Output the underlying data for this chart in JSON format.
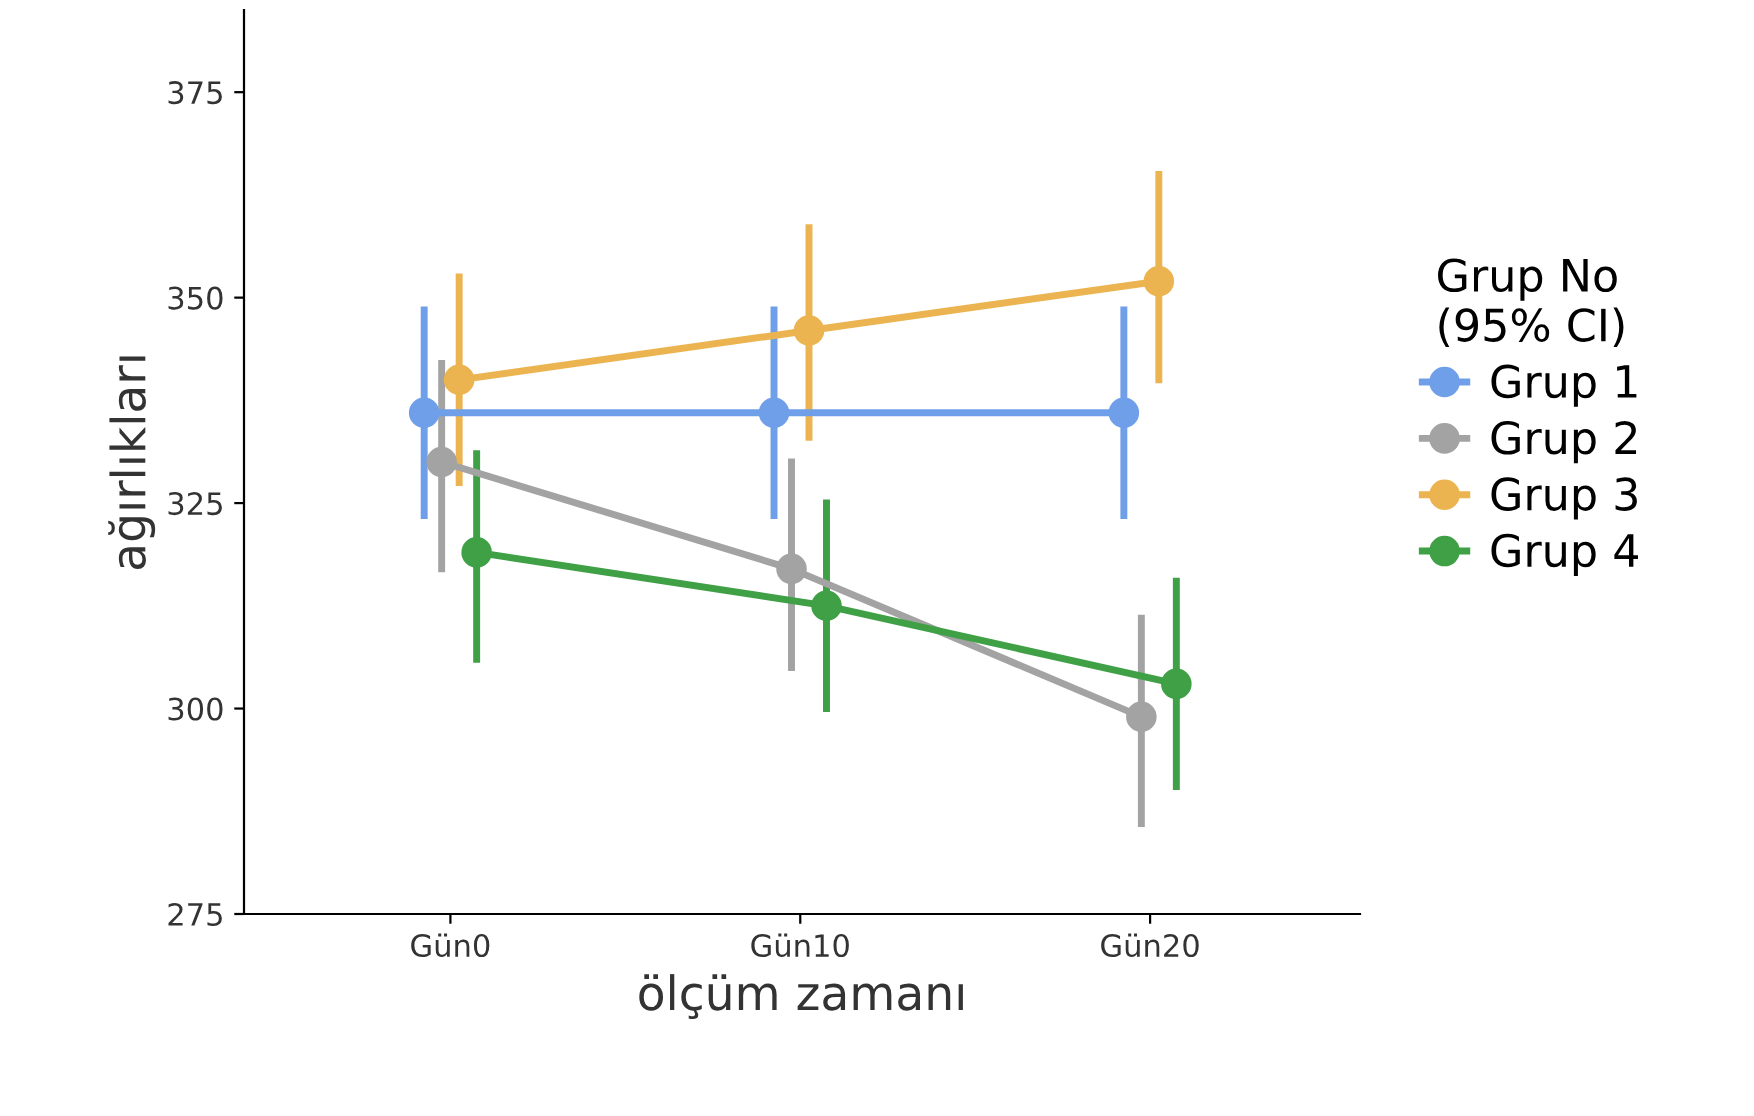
{
  "chart_data": {
    "type": "line",
    "xlabel": "ölçüm zamanı",
    "ylabel": "ağırlıkları",
    "legend_title": "Grup No\n(95% CI)",
    "categories": [
      "Gün0",
      "Gün10",
      "Gün20"
    ],
    "series": [
      {
        "name": "Grup 1",
        "color": "#6f9fe8",
        "values": [
          336,
          336,
          336
        ],
        "errors": [
          [
            323.5,
            348.5
          ],
          [
            323.5,
            348.5
          ],
          [
            323.5,
            348.5
          ]
        ]
      },
      {
        "name": "Grup 2",
        "color": "#a3a3a3",
        "values": [
          330,
          317,
          299
        ],
        "errors": [
          [
            317,
            342
          ],
          [
            305,
            330
          ],
          [
            286,
            311
          ]
        ]
      },
      {
        "name": "Grup 3",
        "color": "#ebb450",
        "values": [
          340,
          346,
          352
        ],
        "errors": [
          [
            327.5,
            352.5
          ],
          [
            333,
            358.5
          ],
          [
            340,
            365
          ]
        ]
      },
      {
        "name": "Grup 4",
        "color": "#3fa046",
        "values": [
          319,
          312.5,
          303
        ],
        "errors": [
          [
            306,
            331
          ],
          [
            300,
            325
          ],
          [
            290.5,
            315.5
          ]
        ]
      }
    ],
    "ylim": [
      275,
      385
    ],
    "yticks": [
      275,
      300,
      325,
      350,
      375
    ],
    "marker": "circle",
    "line_style": "solid",
    "legend": "right",
    "grid": false
  }
}
